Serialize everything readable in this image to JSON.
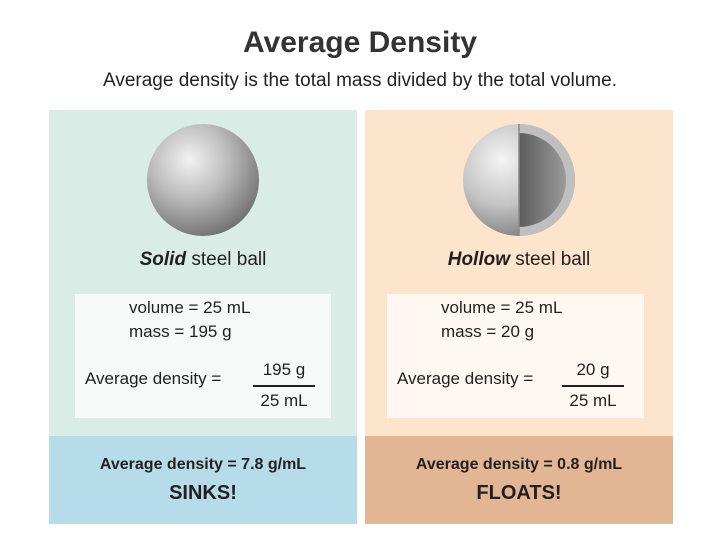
{
  "title": "Average Density",
  "subtitle": "Average density is the total mass divided by the total volume.",
  "panels": {
    "solid": {
      "caption_emphasis": "Solid",
      "caption_rest": " steel ball",
      "volume": "volume = 25 mL",
      "mass": "mass = 195 g",
      "avg_label": "Average density =",
      "numerator": "195 g",
      "denominator": "25 mL",
      "result": "Average density = 7.8 g/mL",
      "verdict": "SINKS!"
    },
    "hollow": {
      "caption_emphasis": "Hollow",
      "caption_rest": " steel ball",
      "volume": "volume = 25 mL",
      "mass": "mass = 20 g",
      "avg_label": "Average density =",
      "numerator": "20 g",
      "denominator": "25 mL",
      "result": "Average density = 0.8 g/mL",
      "verdict": "FLOATS!"
    }
  },
  "colors": {
    "solid_panel": "#d9ece6",
    "solid_result": "#b6dcea",
    "hollow_panel": "#fde4cc",
    "hollow_result": "#e2b594"
  }
}
